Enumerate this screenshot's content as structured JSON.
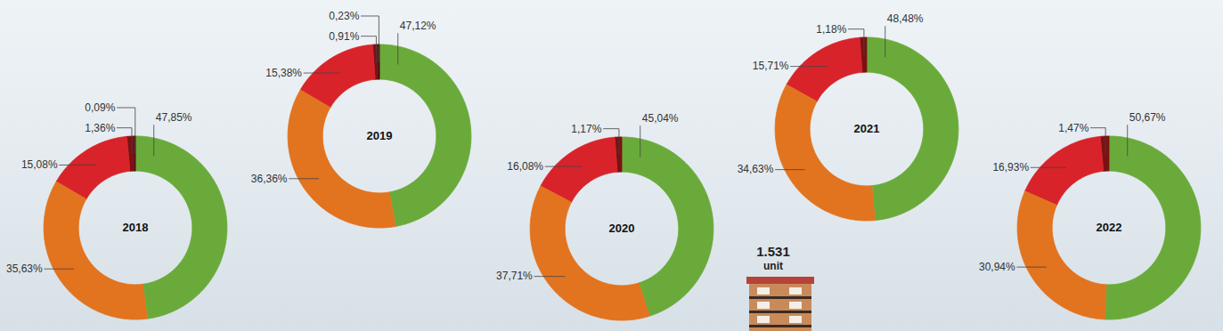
{
  "chart_data": [
    {
      "type": "donut",
      "title": "2018",
      "values": [
        47.85,
        35.63,
        15.08,
        1.36,
        0.09
      ],
      "value_labels": [
        "47,85%",
        "35,63%",
        "15,08%",
        "1,36%",
        "0,09%"
      ],
      "colors": [
        "#6aaa3a",
        "#e2731f",
        "#d8232a",
        "#7b1113",
        "#2b0a0a"
      ],
      "data_labels": true
    },
    {
      "type": "donut",
      "title": "2019",
      "values": [
        47.12,
        36.36,
        15.38,
        0.91,
        0.23
      ],
      "value_labels": [
        "47,12%",
        "36,36%",
        "15,38%",
        "0,91%",
        "0,23%"
      ],
      "colors": [
        "#6aaa3a",
        "#e2731f",
        "#d8232a",
        "#7b1113",
        "#2b0a0a"
      ],
      "data_labels": true
    },
    {
      "type": "donut",
      "title": "2020",
      "values": [
        45.04,
        37.71,
        16.08,
        1.17
      ],
      "value_labels": [
        "45,04%",
        "37,71%",
        "16,08%",
        "1,17%"
      ],
      "colors": [
        "#6aaa3a",
        "#e2731f",
        "#d8232a",
        "#7b1113"
      ],
      "data_labels": true
    },
    {
      "type": "donut",
      "title": "2021",
      "values": [
        48.48,
        34.63,
        15.71,
        1.18
      ],
      "value_labels": [
        "48,48%",
        "34,63%",
        "15,71%",
        "1,18%"
      ],
      "colors": [
        "#6aaa3a",
        "#e2731f",
        "#d8232a",
        "#7b1113"
      ],
      "data_labels": true,
      "annotations": [
        "1.531",
        "unit"
      ]
    },
    {
      "type": "donut",
      "title": "2022",
      "values": [
        50.67,
        30.94,
        16.93,
        1.47
      ],
      "value_labels": [
        "50,67%",
        "30,94%",
        "16,93%",
        "1,47%"
      ],
      "colors": [
        "#6aaa3a",
        "#e2731f",
        "#d8232a",
        "#7b1113"
      ],
      "data_labels": true
    }
  ]
}
